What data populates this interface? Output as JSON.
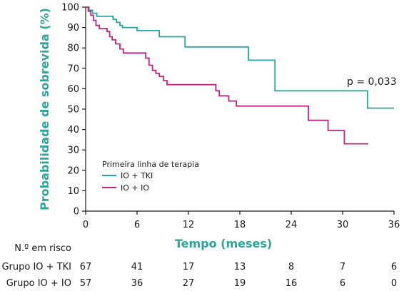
{
  "chart_data": {
    "type": "line",
    "subtype": "kaplan-meier",
    "xlabel": "Tempo (meses)",
    "ylabel": "Probabilidade de sobrevida (%)",
    "xlim": [
      0,
      36
    ],
    "ylim": [
      0,
      100
    ],
    "x_ticks": [
      "0",
      "6",
      "12",
      "18",
      "24",
      "30",
      "36"
    ],
    "y_ticks": [
      "0",
      "10",
      "20",
      "30",
      "40",
      "50",
      "60",
      "70",
      "80",
      "90",
      "100"
    ],
    "grid": false,
    "legend": {
      "title": "Primeira linha de terapia",
      "position": "lower-left"
    },
    "annotation": "p = 0,033",
    "series": [
      {
        "name": "IO + TKI",
        "color": "#2aa79b",
        "points": [
          [
            0,
            100
          ],
          [
            0.4,
            98.5
          ],
          [
            0.8,
            97
          ],
          [
            1.3,
            95.5
          ],
          [
            3.2,
            94
          ],
          [
            3.6,
            92.5
          ],
          [
            4,
            91
          ],
          [
            4.3,
            90
          ],
          [
            6,
            88.5
          ],
          [
            8.6,
            85.5
          ],
          [
            11.6,
            80.5
          ],
          [
            19,
            74
          ],
          [
            22.1,
            59
          ],
          [
            32.9,
            50.5
          ],
          [
            36,
            50.5
          ]
        ]
      },
      {
        "name": "IO + IO",
        "color": "#c0267e",
        "points": [
          [
            0,
            100
          ],
          [
            0.3,
            98
          ],
          [
            0.6,
            96
          ],
          [
            0.9,
            93.5
          ],
          [
            1.2,
            91
          ],
          [
            1.6,
            89.5
          ],
          [
            2.5,
            88
          ],
          [
            2.8,
            85.5
          ],
          [
            3.1,
            84
          ],
          [
            3.5,
            82
          ],
          [
            4,
            79.5
          ],
          [
            4.4,
            77.5
          ],
          [
            7,
            75
          ],
          [
            7.4,
            71.5
          ],
          [
            7.8,
            69
          ],
          [
            8.2,
            67.5
          ],
          [
            8.6,
            66
          ],
          [
            9.1,
            64
          ],
          [
            9.5,
            62
          ],
          [
            15.2,
            59
          ],
          [
            15.6,
            56.5
          ],
          [
            16.7,
            54
          ],
          [
            17.6,
            51.5
          ],
          [
            26,
            44.5
          ],
          [
            28.3,
            39.5
          ],
          [
            30.2,
            33
          ],
          [
            33,
            33
          ]
        ]
      }
    ]
  },
  "risk_table": {
    "header": "N.º em risco",
    "rows": [
      {
        "label": "Grupo IO + TKI",
        "values": [
          "67",
          "41",
          "17",
          "13",
          "8",
          "7",
          "6"
        ]
      },
      {
        "label": "Grupo IO + IO",
        "values": [
          "57",
          "36",
          "27",
          "19",
          "16",
          "6",
          "0"
        ]
      }
    ]
  }
}
